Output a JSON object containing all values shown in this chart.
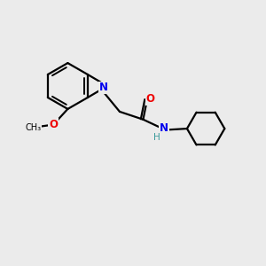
{
  "bg_color": "#ebebeb",
  "bond_color": "#000000",
  "N_color": "#0000ee",
  "O_color": "#ee0000",
  "NH_color": "#3a9a9a",
  "line_width": 1.6,
  "font_size_atom": 8.5,
  "xlim": [
    0,
    10
  ],
  "ylim": [
    0,
    10
  ]
}
